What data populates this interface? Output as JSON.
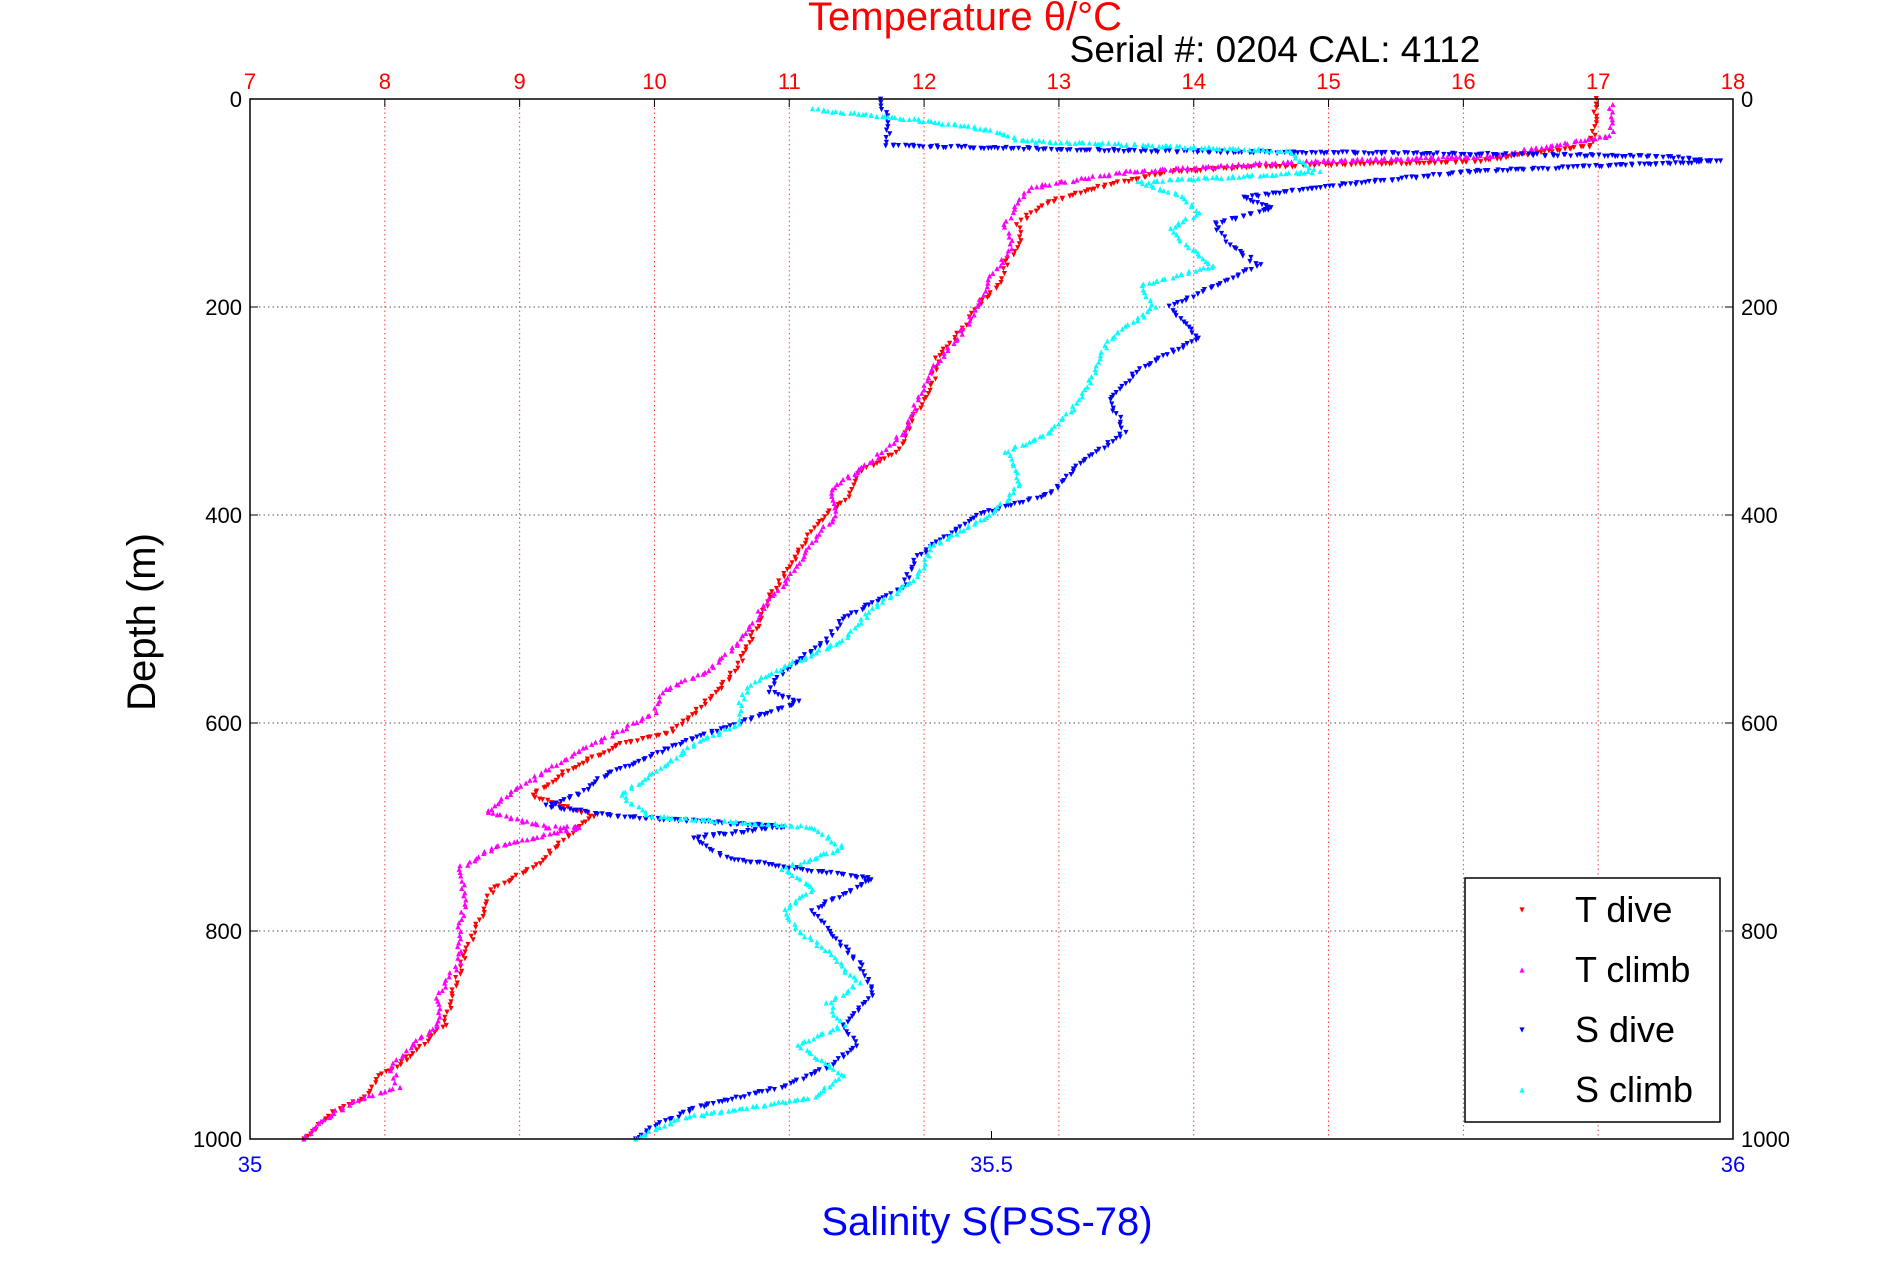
{
  "chart_data": {
    "type": "scatter",
    "title": "Temperature θ/°C",
    "subtitle": "Serial #: 0204  CAL: 4112",
    "xlabel": "Salinity S(PSS-78)",
    "ylabel": "Depth (m)",
    "top_axis": {
      "ticks": [
        "7",
        "8",
        "9",
        "10",
        "11",
        "12",
        "13",
        "14",
        "15",
        "16",
        "17",
        "18"
      ],
      "range": [
        7,
        18
      ],
      "color": "#ff0000"
    },
    "bottom_axis": {
      "ticks": [
        "35",
        "35.5",
        "36"
      ],
      "range": [
        35,
        36
      ],
      "color": "#0000ff"
    },
    "y_axis": {
      "ticks": [
        "0",
        "200",
        "400",
        "600",
        "800",
        "1000"
      ],
      "range": [
        0,
        1000
      ],
      "reversed": true
    },
    "grid": true,
    "legend_position": "bottom-right",
    "series": [
      {
        "name": "T dive",
        "axis": "temperature",
        "color": "#ff0000",
        "marker": "triangle-down",
        "points": [
          [
            16.98,
            0
          ],
          [
            16.98,
            20
          ],
          [
            16.95,
            45
          ],
          [
            16.1,
            60
          ],
          [
            14.5,
            65
          ],
          [
            13.8,
            70
          ],
          [
            13.3,
            85
          ],
          [
            12.9,
            100
          ],
          [
            12.8,
            110
          ],
          [
            12.7,
            120
          ],
          [
            12.7,
            140
          ],
          [
            12.6,
            160
          ],
          [
            12.55,
            180
          ],
          [
            12.4,
            200
          ],
          [
            12.3,
            220
          ],
          [
            12.1,
            250
          ],
          [
            12.05,
            280
          ],
          [
            11.9,
            310
          ],
          [
            11.8,
            340
          ],
          [
            11.5,
            360
          ],
          [
            11.45,
            380
          ],
          [
            11.2,
            410
          ],
          [
            11.05,
            440
          ],
          [
            10.85,
            480
          ],
          [
            10.75,
            510
          ],
          [
            10.6,
            550
          ],
          [
            10.3,
            590
          ],
          [
            10.1,
            610
          ],
          [
            9.75,
            620
          ],
          [
            9.6,
            630
          ],
          [
            9.3,
            650
          ],
          [
            9.1,
            670
          ],
          [
            9.55,
            690
          ],
          [
            9.35,
            710
          ],
          [
            9.1,
            740
          ],
          [
            8.8,
            760
          ],
          [
            8.7,
            790
          ],
          [
            8.6,
            820
          ],
          [
            8.5,
            860
          ],
          [
            8.45,
            890
          ],
          [
            8.2,
            920
          ],
          [
            7.95,
            940
          ],
          [
            7.85,
            960
          ],
          [
            7.6,
            975
          ],
          [
            7.5,
            990
          ],
          [
            7.4,
            1000
          ]
        ]
      },
      {
        "name": "T climb",
        "axis": "temperature",
        "color": "#ff00ff",
        "marker": "triangle-up",
        "points": [
          [
            17.1,
            5
          ],
          [
            17.1,
            20
          ],
          [
            17.1,
            35
          ],
          [
            16.2,
            55
          ],
          [
            14.8,
            60
          ],
          [
            13.5,
            70
          ],
          [
            12.8,
            85
          ],
          [
            12.7,
            100
          ],
          [
            12.6,
            120
          ],
          [
            12.65,
            140
          ],
          [
            12.5,
            170
          ],
          [
            12.4,
            200
          ],
          [
            12.25,
            230
          ],
          [
            12.05,
            260
          ],
          [
            11.95,
            290
          ],
          [
            11.85,
            320
          ],
          [
            11.6,
            350
          ],
          [
            11.3,
            375
          ],
          [
            11.35,
            400
          ],
          [
            11.15,
            430
          ],
          [
            11.0,
            460
          ],
          [
            10.8,
            490
          ],
          [
            10.65,
            520
          ],
          [
            10.4,
            550
          ],
          [
            10.05,
            570
          ],
          [
            10.0,
            590
          ],
          [
            9.7,
            610
          ],
          [
            9.4,
            630
          ],
          [
            9.15,
            650
          ],
          [
            8.9,
            670
          ],
          [
            8.75,
            685
          ],
          [
            9.2,
            700
          ],
          [
            9.45,
            700
          ],
          [
            8.8,
            720
          ],
          [
            8.55,
            740
          ],
          [
            8.6,
            770
          ],
          [
            8.55,
            800
          ],
          [
            8.55,
            830
          ],
          [
            8.4,
            860
          ],
          [
            8.4,
            890
          ],
          [
            8.2,
            910
          ],
          [
            8.05,
            930
          ],
          [
            8.1,
            950
          ],
          [
            7.75,
            965
          ],
          [
            7.5,
            985
          ],
          [
            7.4,
            1000
          ]
        ]
      },
      {
        "name": "S dive",
        "axis": "salinity",
        "color": "#0000ff",
        "marker": "triangle-down",
        "points": [
          [
            35.425,
            0
          ],
          [
            35.43,
            20
          ],
          [
            35.43,
            45
          ],
          [
            35.6,
            50
          ],
          [
            35.95,
            55
          ],
          [
            35.99,
            60
          ],
          [
            35.82,
            70
          ],
          [
            35.72,
            85
          ],
          [
            35.67,
            95
          ],
          [
            35.69,
            105
          ],
          [
            35.65,
            120
          ],
          [
            35.66,
            140
          ],
          [
            35.68,
            160
          ],
          [
            35.65,
            180
          ],
          [
            35.62,
            200
          ],
          [
            35.64,
            230
          ],
          [
            35.6,
            260
          ],
          [
            35.58,
            290
          ],
          [
            35.59,
            320
          ],
          [
            35.56,
            350
          ],
          [
            35.54,
            380
          ],
          [
            35.49,
            400
          ],
          [
            35.47,
            420
          ],
          [
            35.45,
            440
          ],
          [
            35.44,
            470
          ],
          [
            35.4,
            500
          ],
          [
            35.39,
            520
          ],
          [
            35.36,
            550
          ],
          [
            35.35,
            570
          ],
          [
            35.37,
            580
          ],
          [
            35.33,
            600
          ],
          [
            35.29,
            620
          ],
          [
            35.24,
            650
          ],
          [
            35.22,
            670
          ],
          [
            35.2,
            680
          ],
          [
            35.25,
            690
          ],
          [
            35.36,
            700
          ],
          [
            35.3,
            710
          ],
          [
            35.32,
            730
          ],
          [
            35.42,
            750
          ],
          [
            35.38,
            780
          ],
          [
            35.39,
            800
          ],
          [
            35.41,
            830
          ],
          [
            35.42,
            860
          ],
          [
            35.4,
            890
          ],
          [
            35.41,
            910
          ],
          [
            35.39,
            930
          ],
          [
            35.36,
            950
          ],
          [
            35.3,
            970
          ],
          [
            35.27,
            990
          ],
          [
            35.26,
            1000
          ]
        ]
      },
      {
        "name": "S climb",
        "axis": "salinity",
        "color": "#00ffff",
        "marker": "triangle-up",
        "points": [
          [
            35.38,
            10
          ],
          [
            35.45,
            20
          ],
          [
            35.5,
            30
          ],
          [
            35.52,
            40
          ],
          [
            35.7,
            50
          ],
          [
            35.72,
            70
          ],
          [
            35.6,
            80
          ],
          [
            35.63,
            95
          ],
          [
            35.64,
            110
          ],
          [
            35.62,
            125
          ],
          [
            35.63,
            140
          ],
          [
            35.65,
            160
          ],
          [
            35.6,
            180
          ],
          [
            35.61,
            200
          ],
          [
            35.58,
            230
          ],
          [
            35.57,
            260
          ],
          [
            35.56,
            290
          ],
          [
            35.54,
            320
          ],
          [
            35.51,
            340
          ],
          [
            35.52,
            370
          ],
          [
            35.5,
            400
          ],
          [
            35.46,
            430
          ],
          [
            35.45,
            460
          ],
          [
            35.42,
            490
          ],
          [
            35.4,
            520
          ],
          [
            35.37,
            540
          ],
          [
            35.34,
            560
          ],
          [
            35.33,
            580
          ],
          [
            35.33,
            600
          ],
          [
            35.3,
            620
          ],
          [
            35.27,
            650
          ],
          [
            35.25,
            670
          ],
          [
            35.27,
            690
          ],
          [
            35.38,
            700
          ],
          [
            35.4,
            720
          ],
          [
            35.36,
            740
          ],
          [
            35.38,
            760
          ],
          [
            35.36,
            780
          ],
          [
            35.37,
            800
          ],
          [
            35.39,
            820
          ],
          [
            35.41,
            850
          ],
          [
            35.39,
            870
          ],
          [
            35.4,
            890
          ],
          [
            35.37,
            910
          ],
          [
            35.4,
            940
          ],
          [
            35.38,
            960
          ],
          [
            35.29,
            980
          ],
          [
            35.26,
            1000
          ]
        ]
      }
    ]
  }
}
